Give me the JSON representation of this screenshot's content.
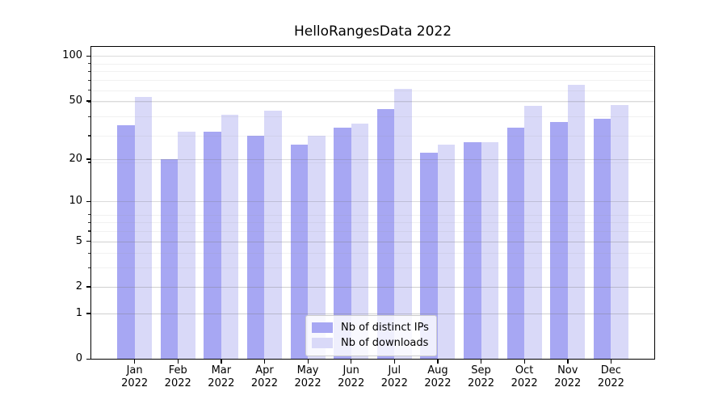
{
  "title": "HelloRangesData 2022",
  "chart_data": {
    "type": "bar",
    "title": "HelloRangesData 2022",
    "yscale": "log1p",
    "grid": true,
    "legend_position": "bottom-center",
    "categories": [
      "Jan",
      "Feb",
      "Mar",
      "Apr",
      "May",
      "Jun",
      "Jul",
      "Aug",
      "Sep",
      "Oct",
      "Nov",
      "Dec"
    ],
    "year": "2022",
    "y_ticks": [
      0,
      1,
      2,
      5,
      10,
      20,
      50,
      100
    ],
    "y_minor_ticks": [
      1,
      2,
      3,
      4,
      5,
      6,
      7,
      8,
      19,
      29,
      39,
      49,
      59,
      69,
      79,
      89
    ],
    "ylim": [
      0,
      115
    ],
    "series": [
      {
        "name": "Nb of distinct IPs",
        "color": "#a7a7f3",
        "values": [
          34,
          20,
          31,
          29,
          25,
          33,
          44,
          22,
          26,
          33,
          36,
          38
        ]
      },
      {
        "name": "Nb of downloads",
        "color": "#d9d9f8",
        "values": [
          53,
          31,
          40,
          43,
          29,
          35,
          60,
          25,
          26,
          46,
          64,
          47
        ]
      }
    ]
  }
}
